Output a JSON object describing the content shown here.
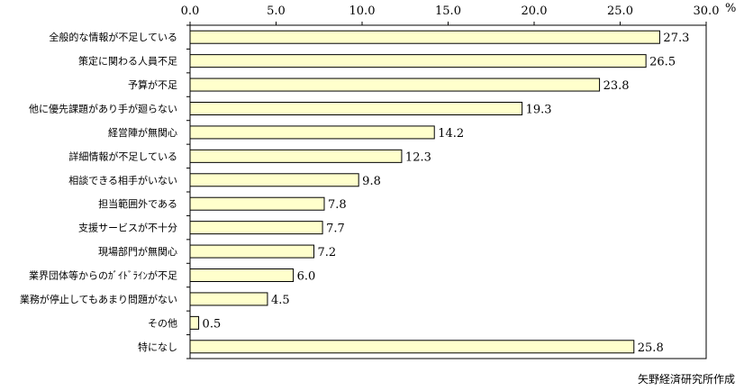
{
  "chart_data": {
    "type": "bar",
    "orientation": "horizontal",
    "categories": [
      "全般的な情報が不足している",
      "策定に関わる人員不足",
      "予算が不足",
      "他に優先課題があり手が廻らない",
      "経営陣が無関心",
      "詳細情報が不足している",
      "相談できる相手がいない",
      "担当範囲外である",
      "支援サービスが不十分",
      "現場部門が無関心",
      "業界団体等からのｶﾞｲﾄﾞﾗｲﾝが不足",
      "業務が停止してもあまり問題がない",
      "その他",
      "特になし"
    ],
    "values": [
      27.3,
      26.5,
      23.8,
      19.3,
      14.2,
      12.3,
      9.8,
      7.8,
      7.7,
      7.2,
      6.0,
      4.5,
      0.5,
      25.8
    ],
    "value_labels": [
      "27.3",
      "26.5",
      "23.8",
      "19.3",
      "14.2",
      "12.3",
      "9.8",
      "7.8",
      "7.7",
      "7.2",
      "6.0",
      "4.5",
      "0.5",
      "25.8"
    ],
    "xlim": [
      0,
      30
    ],
    "xticks": [
      "0.0",
      "5.0",
      "10.0",
      "15.0",
      "20.0",
      "25.0",
      "30.0"
    ],
    "x_unit": "%",
    "grid": false,
    "legend": "none",
    "colors": {
      "bar_fill": "#ffffcc",
      "bar_stroke": "#000000",
      "axis": "#000000"
    }
  },
  "source_note": "矢野経済研究所作成"
}
